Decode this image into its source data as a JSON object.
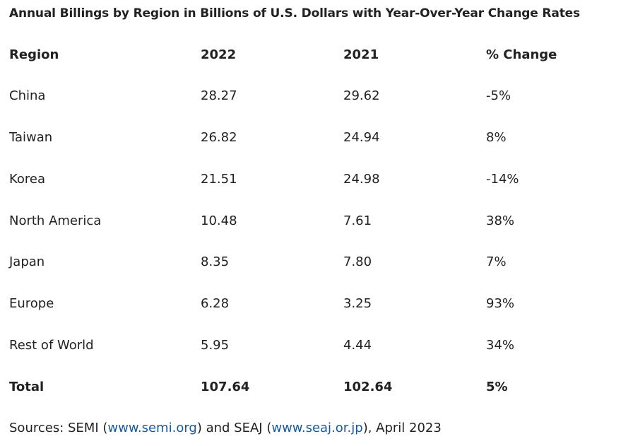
{
  "title": "Annual Billings by Region in Billions of U.S. Dollars with Year-Over-Year Change Rates",
  "table": {
    "headers": [
      "Region",
      "2022",
      "2021",
      "% Change"
    ],
    "rows": [
      [
        "China",
        "28.27",
        "29.62",
        "-5%"
      ],
      [
        "Taiwan",
        "26.82",
        "24.94",
        "8%"
      ],
      [
        "Korea",
        "21.51",
        "24.98",
        "-14%"
      ],
      [
        "North America",
        "10.48",
        "7.61",
        "38%"
      ],
      [
        "Japan",
        "8.35",
        "7.80",
        "7%"
      ],
      [
        "Europe",
        "6.28",
        "3.25",
        "93%"
      ],
      [
        "Rest of World",
        "5.95",
        "4.44",
        "34%"
      ]
    ],
    "total": [
      "Total",
      "107.64",
      "102.64",
      "5%"
    ]
  },
  "source": {
    "prefix": "Sources: SEMI (",
    "link1": "www.semi.org",
    "middle": ") and SEAJ (",
    "link2": "www.seaj.or.jp",
    "suffix": "), April 2023"
  }
}
